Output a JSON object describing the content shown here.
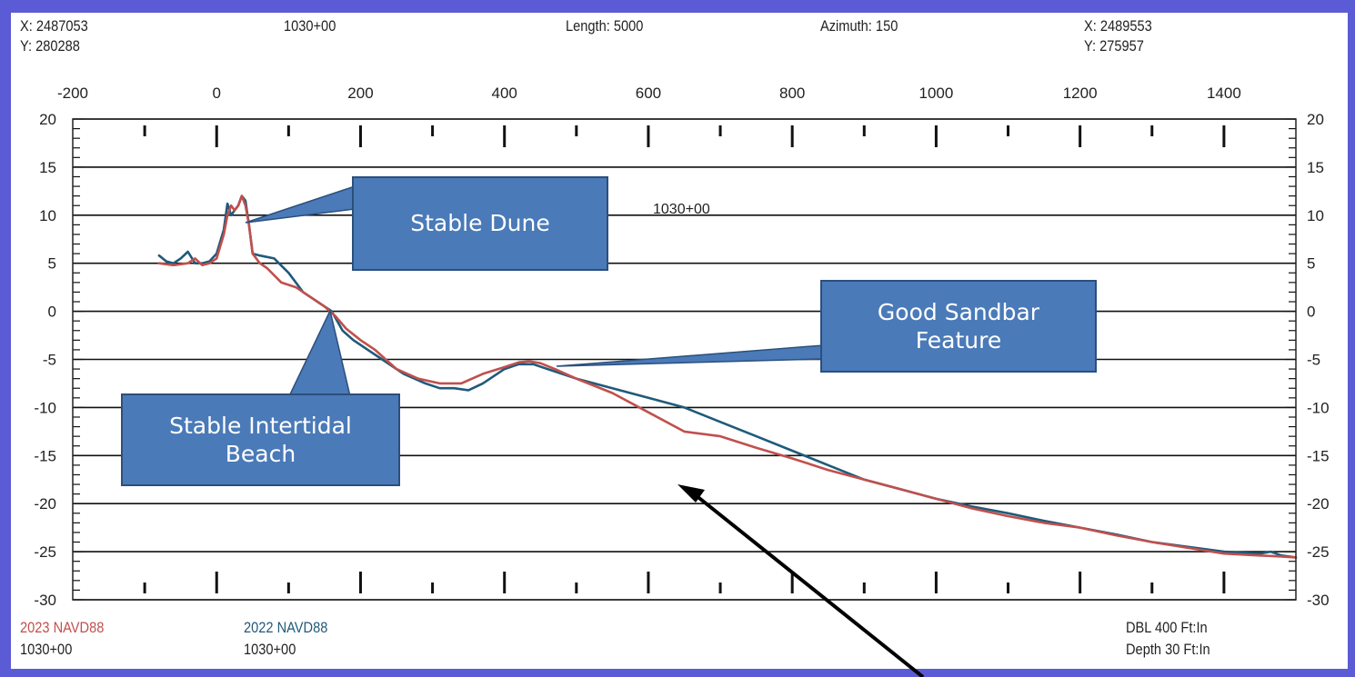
{
  "header": {
    "start_x": "X: 2487053",
    "start_y": "Y: 280288",
    "station": "1030+00",
    "length": "Length: 5000",
    "azimuth": "Azimuth: 150",
    "end_x": "X: 2489553",
    "end_y": "Y: 275957"
  },
  "legend": {
    "series_2023": "2023 NAVD88",
    "station_2023": "1030+00",
    "series_2022": "2022 NAVD88",
    "station_2022": "1030+00",
    "scale_h": "DBL 400 Ft:In",
    "scale_v": "Depth 30 Ft:In"
  },
  "annotations": {
    "stable_dune": "Stable Dune",
    "good_sandbar": "Good Sandbar Feature",
    "stable_intertidal": "Stable Intertidal Beach",
    "profile_label": "1030+00"
  },
  "chart_data": {
    "type": "line",
    "xlim": [
      -200,
      1500
    ],
    "ylim": [
      -30,
      20
    ],
    "x_ticks": [
      -200,
      0,
      200,
      400,
      600,
      800,
      1000,
      1200,
      1400
    ],
    "y_ticks": [
      20,
      15,
      10,
      5,
      0,
      -5,
      -10,
      -15,
      -20,
      -25,
      -30
    ],
    "grid": "horizontal",
    "colors": {
      "2023": "#c0504d",
      "2022": "#1f5a7a"
    },
    "series": [
      {
        "name": "2023 NAVD88",
        "x": [
          -80,
          -60,
          -40,
          -30,
          -20,
          -10,
          0,
          10,
          15,
          20,
          25,
          30,
          35,
          40,
          45,
          50,
          60,
          70,
          90,
          110,
          130,
          150,
          165,
          180,
          200,
          220,
          250,
          280,
          310,
          340,
          370,
          400,
          420,
          435,
          450,
          470,
          500,
          550,
          600,
          650,
          700,
          750,
          800,
          850,
          900,
          950,
          1000,
          1050,
          1100,
          1150,
          1200,
          1250,
          1300,
          1350,
          1400,
          1450,
          1480,
          1500
        ],
        "y": [
          5,
          4.8,
          5,
          5.5,
          4.8,
          5,
          5.5,
          8,
          10,
          11,
          10.5,
          11,
          12,
          11,
          9,
          6,
          5,
          4.5,
          3,
          2.5,
          1.5,
          0.5,
          -0.5,
          -1.8,
          -3,
          -4,
          -6,
          -7,
          -7.5,
          -7.5,
          -6.5,
          -5.8,
          -5.3,
          -5.2,
          -5.4,
          -6,
          -7,
          -8.5,
          -10.5,
          -12.5,
          -13,
          -14.2,
          -15.3,
          -16.5,
          -17.5,
          -18.5,
          -19.5,
          -20.5,
          -21.3,
          -22,
          -22.5,
          -23.3,
          -24,
          -24.6,
          -25.2,
          -25.4,
          -25.5,
          -25.6
        ]
      },
      {
        "name": "2022 NAVD88",
        "x": [
          -80,
          -70,
          -60,
          -50,
          -40,
          -30,
          -20,
          -10,
          0,
          10,
          15,
          20,
          25,
          30,
          35,
          40,
          45,
          50,
          60,
          80,
          100,
          120,
          140,
          160,
          175,
          190,
          210,
          230,
          260,
          290,
          310,
          330,
          350,
          370,
          400,
          420,
          440,
          460,
          500,
          550,
          600,
          650,
          700,
          750,
          800,
          850,
          900,
          950,
          1000,
          1050,
          1100,
          1150,
          1200,
          1250,
          1300,
          1350,
          1400,
          1450,
          1465,
          1480,
          1500
        ],
        "y": [
          5.8,
          5.2,
          5,
          5.5,
          6.2,
          5,
          5,
          5.2,
          6,
          8.5,
          11.2,
          10,
          10.5,
          11,
          12,
          11.5,
          9,
          6,
          5.8,
          5.5,
          4,
          2,
          1,
          0,
          -2,
          -3,
          -4,
          -5,
          -6.5,
          -7.5,
          -8,
          -8,
          -8.2,
          -7.5,
          -6,
          -5.5,
          -5.5,
          -6,
          -7,
          -8,
          -9,
          -10,
          -11.5,
          -13,
          -14.5,
          -16,
          -17.5,
          -18.5,
          -19.5,
          -20.3,
          -21,
          -21.8,
          -22.5,
          -23.2,
          -24,
          -24.5,
          -25,
          -25.2,
          -25,
          -25.4,
          -25.6
        ]
      }
    ]
  }
}
